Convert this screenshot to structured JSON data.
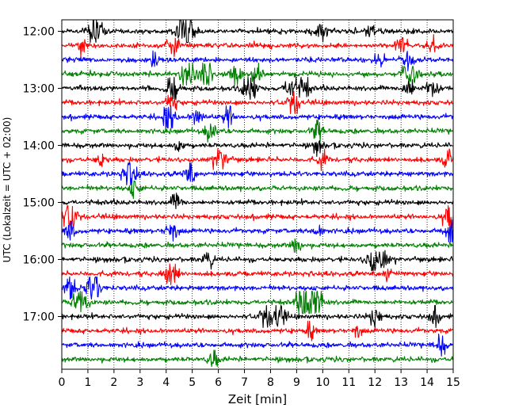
{
  "chart_data": {
    "type": "line",
    "title": "",
    "xlabel": "Zeit  [min]",
    "ylabel": "UTC (Lokalzeit = UTC + 02:00)",
    "xlim": [
      0,
      15
    ],
    "x_ticks": [
      "0",
      "1",
      "2",
      "3",
      "4",
      "5",
      "6",
      "7",
      "8",
      "9",
      "10",
      "11",
      "12",
      "13",
      "14",
      "15"
    ],
    "y_tick_labels": [
      "12:00",
      "13:00",
      "14:00",
      "15:00",
      "16:00",
      "17:00"
    ],
    "grid": "vertical dotted",
    "trace_colors": [
      "#000000",
      "#ff0000",
      "#0000ff",
      "#008000"
    ],
    "traces": [
      {
        "start": "12:00",
        "color": "black",
        "events": [
          [
            1.3,
            1.0
          ],
          [
            4.7,
            1.2
          ],
          [
            4.9,
            0.7
          ],
          [
            9.9,
            0.7
          ],
          [
            11.8,
            0.5
          ]
        ]
      },
      {
        "start": "12:15",
        "color": "red",
        "events": [
          [
            0.8,
            0.5
          ],
          [
            4.3,
            0.7
          ],
          [
            13.0,
            0.6
          ],
          [
            14.2,
            0.5
          ]
        ]
      },
      {
        "start": "12:30",
        "color": "blue",
        "events": [
          [
            3.5,
            0.4
          ],
          [
            12.2,
            0.4
          ],
          [
            13.3,
            0.5
          ]
        ]
      },
      {
        "start": "12:45",
        "color": "green",
        "events": [
          [
            4.8,
            1.0
          ],
          [
            5.5,
            0.9
          ],
          [
            6.7,
            0.7
          ],
          [
            7.5,
            0.6
          ],
          [
            13.3,
            0.9
          ]
        ]
      },
      {
        "start": "13:00",
        "color": "black",
        "events": [
          [
            4.3,
            0.9
          ],
          [
            7.2,
            1.0
          ],
          [
            8.8,
            0.8
          ],
          [
            9.3,
            0.6
          ],
          [
            13.3,
            0.6
          ],
          [
            14.2,
            0.7
          ]
        ]
      },
      {
        "start": "13:15",
        "color": "red",
        "events": [
          [
            4.2,
            0.5
          ],
          [
            8.9,
            0.7
          ]
        ]
      },
      {
        "start": "13:30",
        "color": "blue",
        "events": [
          [
            4.1,
            0.9
          ],
          [
            5.2,
            0.6
          ],
          [
            6.4,
            0.6
          ]
        ]
      },
      {
        "start": "13:45",
        "color": "green",
        "events": [
          [
            5.7,
            0.6
          ],
          [
            9.8,
            0.6
          ]
        ]
      },
      {
        "start": "14:00",
        "color": "black",
        "events": [
          [
            4.5,
            0.4
          ],
          [
            9.8,
            0.4
          ]
        ]
      },
      {
        "start": "14:15",
        "color": "red",
        "events": [
          [
            1.5,
            0.4
          ],
          [
            6.1,
            0.8
          ],
          [
            10.0,
            0.4
          ],
          [
            14.8,
            0.5
          ]
        ]
      },
      {
        "start": "14:30",
        "color": "blue",
        "events": [
          [
            2.6,
            1.0
          ],
          [
            4.9,
            0.6
          ]
        ]
      },
      {
        "start": "14:45",
        "color": "green",
        "events": [
          [
            2.8,
            0.5
          ]
        ]
      },
      {
        "start": "15:00",
        "color": "black",
        "events": [
          [
            4.4,
            0.5
          ]
        ]
      },
      {
        "start": "15:15",
        "color": "red",
        "events": [
          [
            0.3,
            0.9
          ],
          [
            14.9,
            0.9
          ]
        ]
      },
      {
        "start": "15:30",
        "color": "blue",
        "events": [
          [
            0.3,
            0.5
          ],
          [
            4.2,
            0.7
          ],
          [
            9.8,
            0.4
          ],
          [
            14.9,
            0.8
          ]
        ]
      },
      {
        "start": "15:45",
        "color": "green",
        "events": [
          [
            9.0,
            0.5
          ]
        ]
      },
      {
        "start": "16:00",
        "color": "black",
        "events": [
          [
            5.6,
            0.5
          ],
          [
            11.9,
            0.8
          ],
          [
            12.3,
            0.6
          ]
        ]
      },
      {
        "start": "16:15",
        "color": "red",
        "events": [
          [
            4.2,
            0.8
          ],
          [
            12.5,
            0.4
          ]
        ]
      },
      {
        "start": "16:30",
        "color": "blue",
        "events": [
          [
            0.3,
            0.7
          ],
          [
            1.2,
            1.0
          ]
        ]
      },
      {
        "start": "16:45",
        "color": "green",
        "events": [
          [
            0.7,
            1.0
          ],
          [
            9.3,
            1.1
          ],
          [
            9.7,
            1.2
          ]
        ]
      },
      {
        "start": "17:00",
        "color": "black",
        "events": [
          [
            7.8,
            0.6
          ],
          [
            8.3,
            0.9
          ],
          [
            12.0,
            0.6
          ],
          [
            14.3,
            0.5
          ]
        ]
      },
      {
        "start": "17:15",
        "color": "red",
        "events": [
          [
            9.5,
            0.4
          ],
          [
            11.3,
            0.4
          ]
        ]
      },
      {
        "start": "17:30",
        "color": "blue",
        "events": [
          [
            14.5,
            0.6
          ]
        ]
      },
      {
        "start": "17:45",
        "color": "green",
        "events": [
          [
            5.8,
            0.5
          ]
        ]
      }
    ]
  }
}
